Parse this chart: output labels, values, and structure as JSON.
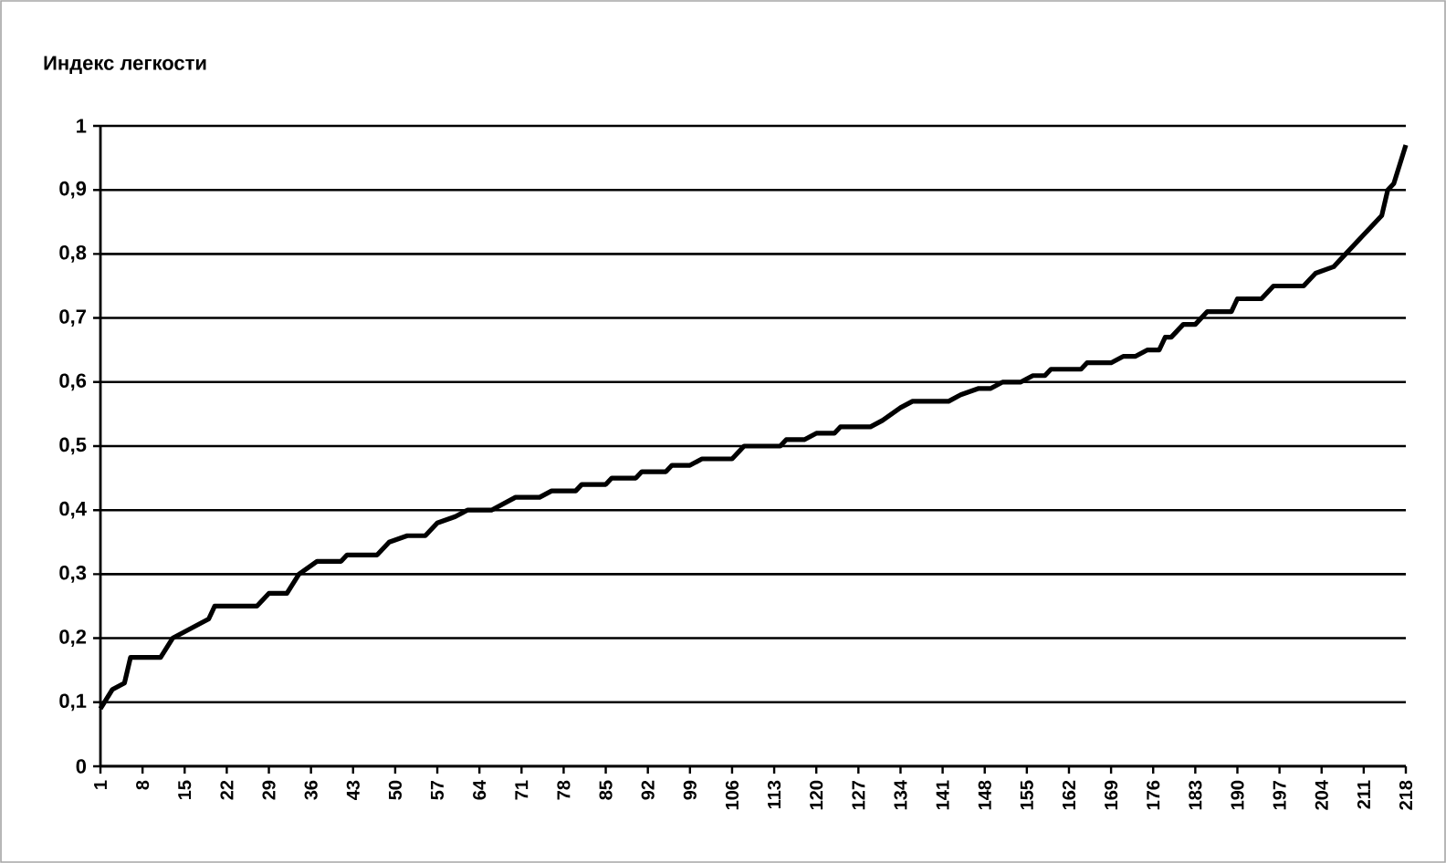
{
  "chart_data": {
    "type": "line",
    "ylabel": "Индекс легкости",
    "color": "#000000",
    "grid": "y",
    "marker": "none",
    "line_style": "solid",
    "xlim": [
      1,
      218
    ],
    "xticks": [
      1,
      8,
      15,
      22,
      29,
      36,
      43,
      50,
      57,
      64,
      71,
      78,
      85,
      92,
      99,
      106,
      113,
      120,
      127,
      134,
      141,
      148,
      155,
      162,
      169,
      176,
      183,
      190,
      197,
      204,
      211,
      218
    ],
    "ylim": [
      0,
      1
    ],
    "yticks": [
      0,
      {
        "value": 0.1,
        "label": "0,1"
      },
      {
        "value": 0.2,
        "label": "0,2"
      },
      {
        "value": 0.3,
        "label": "0,3"
      },
      {
        "value": 0.4,
        "label": "0,4"
      },
      {
        "value": 0.5,
        "label": "0,5"
      },
      {
        "value": 0.6,
        "label": "0,6"
      },
      {
        "value": 0.7,
        "label": "0,7"
      },
      {
        "value": 0.8,
        "label": "0,8"
      },
      {
        "value": 0.9,
        "label": "0,9"
      },
      1
    ],
    "x": [
      1,
      3,
      5,
      6,
      11,
      13,
      15,
      17,
      19,
      20,
      27,
      29,
      32,
      34,
      37,
      41,
      42,
      47,
      49,
      52,
      55,
      57,
      60,
      62,
      66,
      70,
      74,
      76,
      80,
      81,
      85,
      86,
      90,
      91,
      95,
      96,
      99,
      101,
      106,
      107,
      108,
      114,
      115,
      118,
      120,
      123,
      124,
      129,
      131,
      134,
      136,
      142,
      144,
      147,
      149,
      151,
      154,
      156,
      158,
      159,
      164,
      165,
      169,
      171,
      173,
      175,
      177,
      178,
      179,
      181,
      183,
      185,
      189,
      190,
      194,
      196,
      201,
      203,
      206,
      207,
      209,
      211,
      213,
      214,
      215,
      216,
      218
    ],
    "values": [
      0.09,
      0.12,
      0.13,
      0.17,
      0.17,
      0.2,
      0.21,
      0.22,
      0.23,
      0.25,
      0.25,
      0.27,
      0.27,
      0.3,
      0.32,
      0.32,
      0.33,
      0.33,
      0.35,
      0.36,
      0.36,
      0.38,
      0.39,
      0.4,
      0.4,
      0.42,
      0.42,
      0.43,
      0.43,
      0.44,
      0.44,
      0.45,
      0.45,
      0.46,
      0.46,
      0.47,
      0.47,
      0.48,
      0.48,
      0.49,
      0.5,
      0.5,
      0.51,
      0.51,
      0.52,
      0.52,
      0.53,
      0.53,
      0.54,
      0.56,
      0.57,
      0.57,
      0.58,
      0.59,
      0.59,
      0.6,
      0.6,
      0.61,
      0.61,
      0.62,
      0.62,
      0.63,
      0.63,
      0.64,
      0.64,
      0.65,
      0.65,
      0.67,
      0.67,
      0.69,
      0.69,
      0.71,
      0.71,
      0.73,
      0.73,
      0.75,
      0.75,
      0.77,
      0.78,
      0.79,
      0.81,
      0.83,
      0.85,
      0.86,
      0.9,
      0.91,
      0.97
    ]
  }
}
